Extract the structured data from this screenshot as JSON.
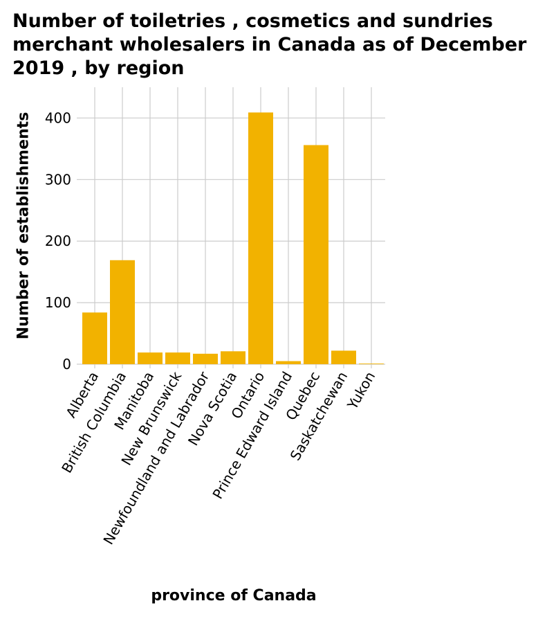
{
  "chart_data": {
    "type": "bar",
    "title": "Number of toiletries , cosmetics and sundries merchant wholesalers in Canada as of December 2019 , by region",
    "xlabel": "province of Canada",
    "ylabel": "Number of establishments",
    "categories": [
      "Alberta",
      "British Columbia",
      "Manitoba",
      "New Brunswick",
      "Newfoundland and Labrador",
      "Nova Scotia",
      "Ontario",
      "Prince Edward Island",
      "Quebec",
      "Saskatchewan",
      "Yukon"
    ],
    "values": [
      84,
      169,
      19,
      19,
      17,
      21,
      409,
      5,
      356,
      22,
      1
    ],
    "ylim": [
      0,
      450
    ],
    "yticks": [
      0,
      100,
      200,
      300,
      400
    ],
    "grid": true,
    "bar_color": "#f2b200",
    "grid_color": "#cccccc"
  }
}
